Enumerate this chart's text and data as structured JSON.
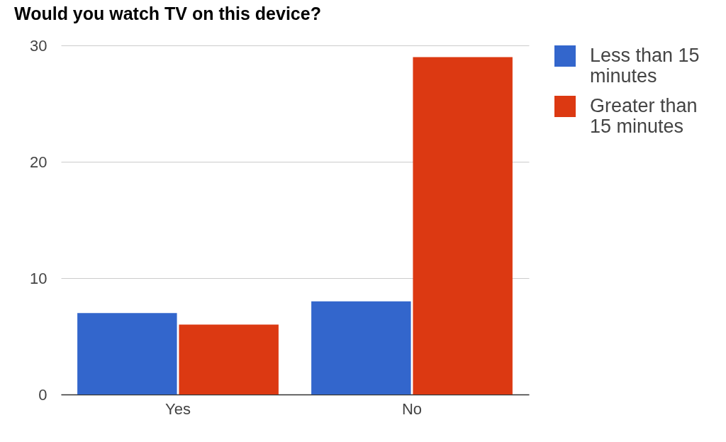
{
  "chart_data": {
    "type": "bar",
    "title": "Would you watch TV on this device?",
    "categories": [
      "Yes",
      "No"
    ],
    "series": [
      {
        "name": "Less than 15 minutes",
        "color": "#3366cc",
        "values": [
          7,
          8
        ]
      },
      {
        "name": "Greater than 15 minutes",
        "color": "#dc3912",
        "values": [
          6,
          29
        ]
      }
    ],
    "ylim": [
      0,
      30
    ],
    "yticks": [
      0,
      10,
      20,
      30
    ],
    "grid": "y",
    "legend": "top right"
  }
}
